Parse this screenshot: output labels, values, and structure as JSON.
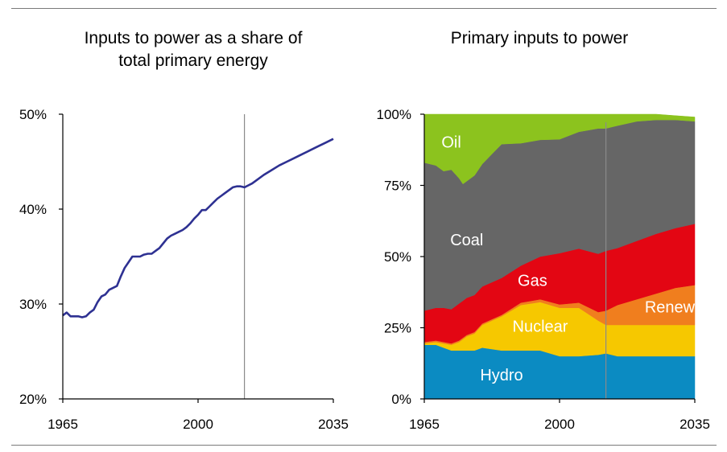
{
  "chart_data": [
    {
      "type": "line",
      "title": "Inputs to power as a share of\ntotal primary energy",
      "xlabel": "",
      "ylabel": "",
      "xlim": [
        1965,
        2035
      ],
      "ylim": [
        20,
        50
      ],
      "x_ticks": [
        "1965",
        "2000",
        "2035"
      ],
      "y_ticks": [
        "20%",
        "30%",
        "40%",
        "50%"
      ],
      "vertical_marker_x": 2012,
      "grid": false,
      "series": [
        {
          "color": "#2e3192",
          "x": [
            1965,
            1966,
            1967,
            1968,
            1969,
            1970,
            1971,
            1972,
            1973,
            1974,
            1975,
            1976,
            1977,
            1978,
            1979,
            1980,
            1981,
            1982,
            1983,
            1984,
            1985,
            1986,
            1987,
            1988,
            1989,
            1990,
            1991,
            1992,
            1993,
            1994,
            1995,
            1996,
            1997,
            1998,
            1999,
            2000,
            2001,
            2002,
            2003,
            2004,
            2005,
            2006,
            2007,
            2008,
            2009,
            2010,
            2011,
            2012,
            2013,
            2014,
            2015,
            2017,
            2019,
            2021,
            2023,
            2025,
            2027,
            2029,
            2031,
            2033,
            2035
          ],
          "y": [
            28.8,
            29.1,
            28.7,
            28.7,
            28.7,
            28.6,
            28.7,
            29.1,
            29.4,
            30.2,
            30.8,
            31.0,
            31.5,
            31.7,
            31.9,
            32.9,
            33.8,
            34.4,
            35.0,
            35.0,
            35.0,
            35.2,
            35.3,
            35.3,
            35.6,
            35.9,
            36.4,
            36.9,
            37.2,
            37.4,
            37.6,
            37.8,
            38.1,
            38.5,
            39.0,
            39.4,
            39.9,
            39.9,
            40.3,
            40.7,
            41.1,
            41.4,
            41.7,
            42.0,
            42.3,
            42.4,
            42.4,
            42.3,
            42.5,
            42.7,
            43.0,
            43.6,
            44.1,
            44.6,
            45.0,
            45.4,
            45.8,
            46.2,
            46.6,
            47.0,
            47.4
          ]
        }
      ]
    },
    {
      "type": "area",
      "title": "Primary inputs to power",
      "xlabel": "",
      "ylabel": "",
      "stacked": true,
      "xlim": [
        1965,
        2035
      ],
      "ylim": [
        0,
        100
      ],
      "x_ticks": [
        "1965",
        "2000",
        "2035"
      ],
      "y_ticks": [
        "0%",
        "25%",
        "50%",
        "75%",
        "100%"
      ],
      "vertical_marker_x": 2012,
      "grid": false,
      "x": [
        1965,
        1968,
        1970,
        1972,
        1974,
        1975,
        1976,
        1978,
        1980,
        1985,
        1990,
        1995,
        2000,
        2005,
        2010,
        2012,
        2015,
        2020,
        2025,
        2030,
        2035
      ],
      "series": [
        {
          "name": "Hydro",
          "color": "#0b8bc2",
          "label": "Hydro",
          "values": [
            19,
            19,
            18,
            17,
            17,
            17,
            17,
            17,
            18,
            17,
            17,
            17,
            15,
            15,
            15.5,
            16,
            15,
            15,
            15,
            15,
            15
          ]
        },
        {
          "name": "Nuclear",
          "color": "#f6c800",
          "label": "Nuclear",
          "values": [
            0.5,
            1,
            1.5,
            2,
            3,
            4,
            5,
            6,
            8,
            12,
            16,
            17,
            17,
            17,
            12,
            10,
            11,
            11,
            11,
            11,
            11
          ]
        },
        {
          "name": "Renew.",
          "color": "#f07e1e",
          "label": "Renew.",
          "values": [
            0.5,
            0.5,
            0.5,
            0.5,
            0.5,
            0.5,
            0.5,
            0.5,
            0.5,
            0.5,
            0.8,
            1,
            1.2,
            1.8,
            3,
            5,
            7,
            9,
            11,
            13,
            14
          ]
        },
        {
          "name": "Gas",
          "color": "#e30613",
          "label": "Gas",
          "values": [
            11,
            11.5,
            12,
            12,
            13,
            13,
            13,
            13,
            13,
            13,
            13,
            15,
            18,
            19,
            20.5,
            21,
            20,
            20.5,
            21,
            21,
            21.5
          ]
        },
        {
          "name": "Coal",
          "color": "#666666",
          "label": "Coal",
          "values": [
            52,
            50,
            48,
            49,
            44,
            41,
            41,
            42,
            43,
            47,
            43,
            41,
            40,
            41,
            44,
            43,
            43,
            42,
            40,
            38,
            36
          ]
        },
        {
          "name": "Oil",
          "color": "#8cc31e",
          "label": "Oil",
          "values": [
            17,
            18,
            20,
            19.5,
            22.5,
            24.5,
            23.5,
            21.5,
            17.5,
            10.5,
            10.2,
            9,
            8.8,
            6.2,
            5,
            5,
            4,
            2.5,
            2,
            1.5,
            1.5
          ]
        }
      ]
    }
  ]
}
